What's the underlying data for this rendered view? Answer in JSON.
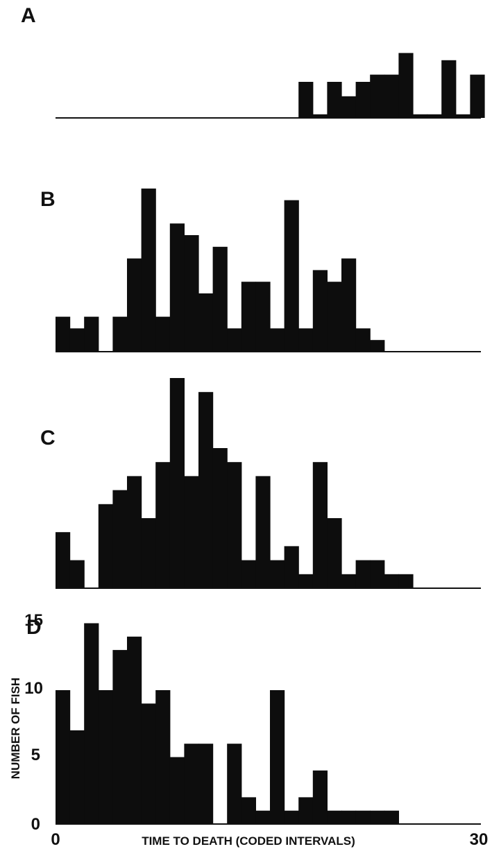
{
  "chart_data": [
    {
      "type": "bar",
      "panel_label": "A",
      "x": [
        17,
        18,
        19,
        20,
        21,
        22,
        23,
        24,
        25,
        26,
        27,
        28,
        29
      ],
      "values": [
        10,
        1,
        10,
        6,
        10,
        12,
        12,
        18,
        1,
        1,
        16,
        1,
        12
      ],
      "xlim": [
        0,
        30
      ],
      "ylim": [
        0,
        18
      ]
    },
    {
      "type": "bar",
      "panel_label": "B",
      "x": [
        0,
        1,
        2,
        3,
        4,
        5,
        6,
        7,
        8,
        9,
        10,
        11,
        12,
        13,
        14,
        15,
        16,
        17,
        18,
        19,
        20,
        21,
        22,
        23,
        24,
        25
      ],
      "values": [
        3,
        2,
        3,
        0,
        3,
        8,
        14,
        3,
        11,
        10,
        5,
        9,
        2,
        6,
        6,
        2,
        13,
        2,
        7,
        6,
        8,
        2,
        1,
        0,
        0,
        0
      ],
      "xlim": [
        0,
        30
      ],
      "ylim": [
        0,
        15
      ]
    },
    {
      "type": "bar",
      "panel_label": "C",
      "x": [
        0,
        1,
        2,
        3,
        4,
        5,
        6,
        7,
        8,
        9,
        10,
        11,
        12,
        13,
        14,
        15,
        16,
        17,
        18,
        19,
        20,
        21,
        22,
        23,
        24,
        25,
        26
      ],
      "values": [
        4,
        2,
        0,
        6,
        7,
        8,
        5,
        9,
        15,
        8,
        14,
        10,
        9,
        2,
        8,
        2,
        3,
        1,
        9,
        5,
        1,
        2,
        2,
        1,
        1,
        0,
        0
      ],
      "xlim": [
        0,
        30
      ],
      "ylim": [
        0,
        15
      ]
    },
    {
      "type": "bar",
      "panel_label": "D",
      "x": [
        0,
        1,
        2,
        3,
        4,
        5,
        6,
        7,
        8,
        9,
        10,
        11,
        12,
        13,
        14,
        15,
        16,
        17,
        18,
        19,
        20,
        21,
        22,
        23
      ],
      "values": [
        10,
        7,
        15,
        10,
        13,
        14,
        9,
        10,
        5,
        6,
        6,
        0,
        6,
        2,
        1,
        10,
        1,
        2,
        4,
        1,
        1,
        1,
        1,
        1
      ],
      "xlim": [
        0,
        30
      ],
      "ylim": [
        0,
        15
      ],
      "yticks": [
        0,
        5,
        10,
        15
      ],
      "xticks": [
        0,
        30
      ],
      "xlabel": "TIME TO DEATH (CODED INTERVALS)",
      "ylabel": "NUMBER OF FISH"
    }
  ]
}
